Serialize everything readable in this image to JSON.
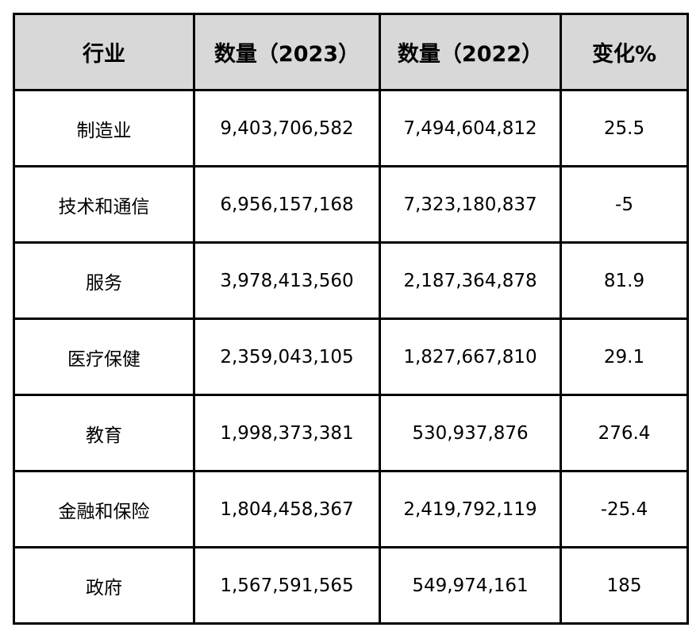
{
  "table": {
    "headers": [
      "行业",
      "数量（2023）",
      "数量（2022）",
      "变化%"
    ],
    "rows": [
      [
        "制造业",
        "9,403,706,582",
        "7,494,604,812",
        "25.5"
      ],
      [
        "技术和通信",
        "6,956,157,168",
        "7,323,180,837",
        "-5"
      ],
      [
        "服务",
        "3,978,413,560",
        "2,187,364,878",
        "81.9"
      ],
      [
        "医疗保健",
        "2,359,043,105",
        "1,827,667,810",
        "29.1"
      ],
      [
        "教育",
        "1,998,373,381",
        "530,937,876",
        "276.4"
      ],
      [
        "金融和保险",
        "1,804,458,367",
        "2,419,792,119",
        "-25.4"
      ],
      [
        "政府",
        "1,567,591,565",
        "549,974,161",
        "185"
      ]
    ]
  },
  "colors": {
    "header_background": "#d8d8d8",
    "border": "#000000",
    "text": "#000000",
    "background": "#ffffff"
  }
}
